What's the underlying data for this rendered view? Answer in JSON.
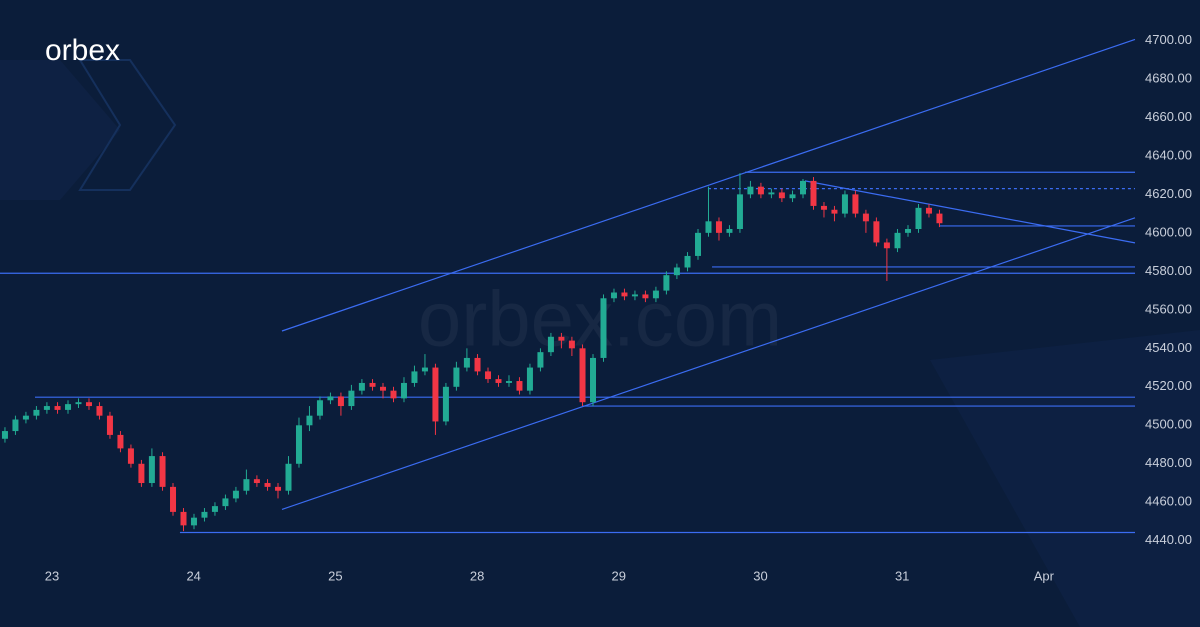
{
  "logo": "orbex",
  "watermark": "orbex.com",
  "chart_data": {
    "type": "candlestick",
    "x": [
      -0.332,
      -0.258,
      -0.184,
      -0.11,
      -0.036,
      0.039,
      0.113,
      0.187,
      0.261,
      0.335,
      0.409,
      0.483,
      0.557,
      0.631,
      0.705,
      0.78,
      0.854,
      0.928,
      1.002,
      1.076,
      1.15,
      1.224,
      1.298,
      1.372,
      1.446,
      1.521,
      1.595,
      1.669,
      1.743,
      1.817,
      1.891,
      1.965,
      2.039,
      2.113,
      2.187,
      2.262,
      2.336,
      2.41,
      2.484,
      2.558,
      2.632,
      2.706,
      2.78,
      2.854,
      2.928,
      3.003,
      3.077,
      3.151,
      3.225,
      3.299,
      3.373,
      3.447,
      3.521,
      3.595,
      3.669,
      3.744,
      3.818,
      3.892,
      3.966,
      4.04,
      4.114,
      4.188,
      4.262,
      4.336,
      4.41,
      4.485,
      4.559,
      4.633,
      4.707,
      4.781,
      4.855,
      4.929,
      5.003,
      5.077,
      5.151,
      5.226,
      5.3,
      5.374,
      5.448,
      5.522,
      5.596,
      5.67,
      5.744,
      5.818,
      5.892,
      5.967,
      6.041,
      6.115,
      6.189,
      6.263
    ],
    "open": [
      4493,
      4497,
      4503,
      4505,
      4508,
      4510,
      4508,
      4511,
      4512,
      4510,
      4505,
      4495,
      4488,
      4480,
      4470,
      4484,
      4468,
      4455,
      4448,
      4452,
      4455,
      4458,
      4462,
      4466,
      4472,
      4470,
      4468,
      4466,
      4480,
      4500,
      4505,
      4513,
      4515,
      4510,
      4518,
      4522,
      4520,
      4518,
      4514,
      4522,
      4528,
      4530,
      4502,
      4520,
      4530,
      4535,
      4528,
      4524,
      4522,
      4523,
      4518,
      4530,
      4538,
      4546,
      4544,
      4540,
      4512,
      4535,
      4566,
      4569,
      4567,
      4568,
      4566,
      4570,
      4578,
      4582,
      4588,
      4600,
      4606,
      4600,
      4602,
      4620,
      4624,
      4620,
      4621,
      4618,
      4620,
      4627,
      4614,
      4612,
      4610,
      4620,
      4610,
      4606,
      4595,
      4592,
      4600,
      4602,
      4613,
      4610
    ],
    "high": [
      4499,
      4505,
      4507,
      4510,
      4512,
      4512,
      4513,
      4514,
      4514,
      4512,
      4507,
      4497,
      4490,
      4482,
      4488,
      4486,
      4470,
      4457,
      4454,
      4457,
      4460,
      4464,
      4468,
      4477,
      4474,
      4472,
      4470,
      4484,
      4504,
      4510,
      4515,
      4517,
      4517,
      4521,
      4524,
      4524,
      4522,
      4520,
      4525,
      4531,
      4537,
      4532,
      4522,
      4533,
      4540,
      4537,
      4530,
      4526,
      4526,
      4525,
      4532,
      4540,
      4548,
      4548,
      4546,
      4542,
      4537,
      4568,
      4571,
      4571,
      4570,
      4570,
      4572,
      4580,
      4584,
      4590,
      4602,
      4624,
      4608,
      4604,
      4631,
      4627,
      4626,
      4623,
      4623,
      4622,
      4628,
      4629,
      4616,
      4614,
      4622,
      4622,
      4612,
      4608,
      4597,
      4602,
      4604,
      4615,
      4615,
      4612
    ],
    "low": [
      4491,
      4495,
      4501,
      4503,
      4506,
      4506,
      4506,
      4509,
      4508,
      4503,
      4493,
      4486,
      4478,
      4468,
      4468,
      4466,
      4453,
      4445,
      4446,
      4450,
      4453,
      4456,
      4460,
      4464,
      4468,
      4466,
      4462,
      4464,
      4478,
      4497,
      4503,
      4511,
      4505,
      4508,
      4516,
      4518,
      4514,
      4512,
      4512,
      4520,
      4526,
      4495,
      4500,
      4518,
      4528,
      4526,
      4522,
      4520,
      4520,
      4516,
      4516,
      4528,
      4536,
      4540,
      4536,
      4510,
      4510,
      4533,
      4564,
      4565,
      4565,
      4564,
      4564,
      4568,
      4576,
      4580,
      4586,
      4598,
      4596,
      4598,
      4600,
      4618,
      4618,
      4618,
      4616,
      4616,
      4618,
      4612,
      4608,
      4606,
      4608,
      4608,
      4600,
      4593,
      4575,
      4590,
      4598,
      4600,
      4608,
      4603
    ],
    "close": [
      4497,
      4503,
      4505,
      4508,
      4510,
      4508,
      4511,
      4512,
      4510,
      4505,
      4495,
      4488,
      4480,
      4470,
      4484,
      4468,
      4455,
      4448,
      4452,
      4455,
      4458,
      4462,
      4466,
      4472,
      4470,
      4468,
      4466,
      4480,
      4500,
      4505,
      4513,
      4515,
      4510,
      4518,
      4522,
      4520,
      4518,
      4514,
      4522,
      4528,
      4530,
      4502,
      4520,
      4530,
      4535,
      4528,
      4524,
      4522,
      4523,
      4518,
      4530,
      4538,
      4546,
      4544,
      4540,
      4512,
      4535,
      4566,
      4569,
      4567,
      4568,
      4566,
      4570,
      4578,
      4582,
      4588,
      4600,
      4606,
      4600,
      4602,
      4620,
      4624,
      4620,
      4621,
      4618,
      4620,
      4627,
      4614,
      4612,
      4610,
      4620,
      4610,
      4606,
      4595,
      4592,
      4600,
      4602,
      4613,
      4610,
      4605
    ],
    "up_color": "#22ab94",
    "down_color": "#f23645",
    "line_color": "#3b6cf2",
    "lines": [
      {
        "x": [
          -0.367,
          7.643
        ],
        "y": [
          4579,
          4579
        ]
      },
      {
        "x": [
          4.891,
          7.643
        ],
        "y": [
          4631.5,
          4631.5
        ]
      },
      {
        "x": [
          4.629,
          7.643
        ],
        "y": [
          4623,
          4623
        ],
        "dashed": true
      },
      {
        "x": [
          6.267,
          7.643
        ],
        "y": [
          4603.6,
          4603.6
        ]
      },
      {
        "x": [
          4.658,
          7.643
        ],
        "y": [
          4582.3,
          4582.3
        ]
      },
      {
        "x": [
          -0.12,
          7.643
        ],
        "y": [
          4514.6,
          4514.6
        ]
      },
      {
        "x": [
          3.747,
          7.643
        ],
        "y": [
          4510,
          4510
        ]
      },
      {
        "x": [
          0.903,
          7.643
        ],
        "y": [
          4444.3,
          4444.3
        ]
      },
      {
        "x": [
          1.623,
          7.643
        ],
        "y": [
          4549,
          4700.5
        ]
      },
      {
        "x": [
          1.623,
          7.643
        ],
        "y": [
          4456.3,
          4607.8
        ]
      },
      {
        "x": [
          5.314,
          7.643
        ],
        "y": [
          4627,
          4594.8
        ]
      }
    ],
    "xlim": [
      -0.367,
      7.643
    ],
    "xticks": [
      {
        "value": 0,
        "label": "23"
      },
      {
        "value": 1,
        "label": "24"
      },
      {
        "value": 2,
        "label": "25"
      },
      {
        "value": 3,
        "label": "28"
      },
      {
        "value": 4,
        "label": "29"
      },
      {
        "value": 5,
        "label": "30"
      },
      {
        "value": 6,
        "label": "31"
      },
      {
        "value": 7,
        "label": "Apr"
      }
    ],
    "ylim": [
      4430,
      4721
    ],
    "yticks": [
      {
        "value": 4440,
        "label": "4440.00"
      },
      {
        "value": 4460,
        "label": "4460.00"
      },
      {
        "value": 4480,
        "label": "4480.00"
      },
      {
        "value": 4500,
        "label": "4500.00"
      },
      {
        "value": 4520,
        "label": "4520.00"
      },
      {
        "value": 4540,
        "label": "4540.00"
      },
      {
        "value": 4560,
        "label": "4560.00"
      },
      {
        "value": 4580,
        "label": "4580.00"
      },
      {
        "value": 4600,
        "label": "4600.00"
      },
      {
        "value": 4620,
        "label": "4620.00"
      },
      {
        "value": 4640,
        "label": "4640.00"
      },
      {
        "value": 4660,
        "label": "4660.00"
      },
      {
        "value": 4680,
        "label": "4680.00"
      },
      {
        "value": 4700,
        "label": "4700.00"
      }
    ]
  }
}
